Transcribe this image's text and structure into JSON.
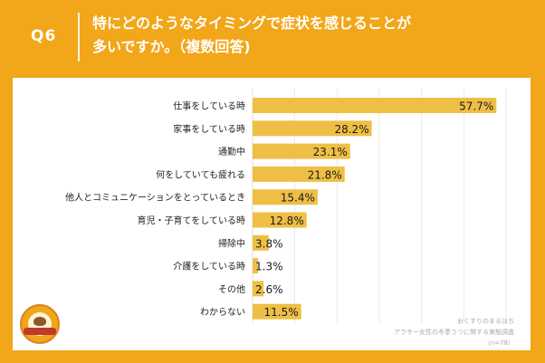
{
  "header": {
    "question_number": "Q6",
    "title_line1": "特にどのようなタイミングで症状を感じることが",
    "title_line2": "多いですか。（複数回答)"
  },
  "source": {
    "line1": "おくすりのまるはち",
    "line2": "アラサー女性の冬季うつに関する実態調査",
    "line3": "（n=78）"
  },
  "colors": {
    "header_bg": "#f2a619",
    "bar": "#efbf45",
    "grid": "#dddddd"
  },
  "chart_data": {
    "type": "bar",
    "orientation": "horizontal",
    "categories": [
      "仕事をしている時",
      "家事をしている時",
      "通勤中",
      "何をしていても疲れる",
      "他人とコミュニケーションをとっているとき",
      "育児・子育てをしている時",
      "掃除中",
      "介護をしている時",
      "その他",
      "わからない"
    ],
    "values": [
      57.7,
      28.2,
      23.1,
      21.8,
      15.4,
      12.8,
      3.8,
      1.3,
      2.6,
      11.5
    ],
    "value_labels": [
      "57.7%",
      "28.2%",
      "23.1%",
      "21.8%",
      "15.4%",
      "12.8%",
      "3.8%",
      "1.3%",
      "2.6%",
      "11.5%"
    ],
    "xlim": [
      0,
      60
    ],
    "title": "",
    "xlabel": "",
    "ylabel": "",
    "unit": "%"
  }
}
